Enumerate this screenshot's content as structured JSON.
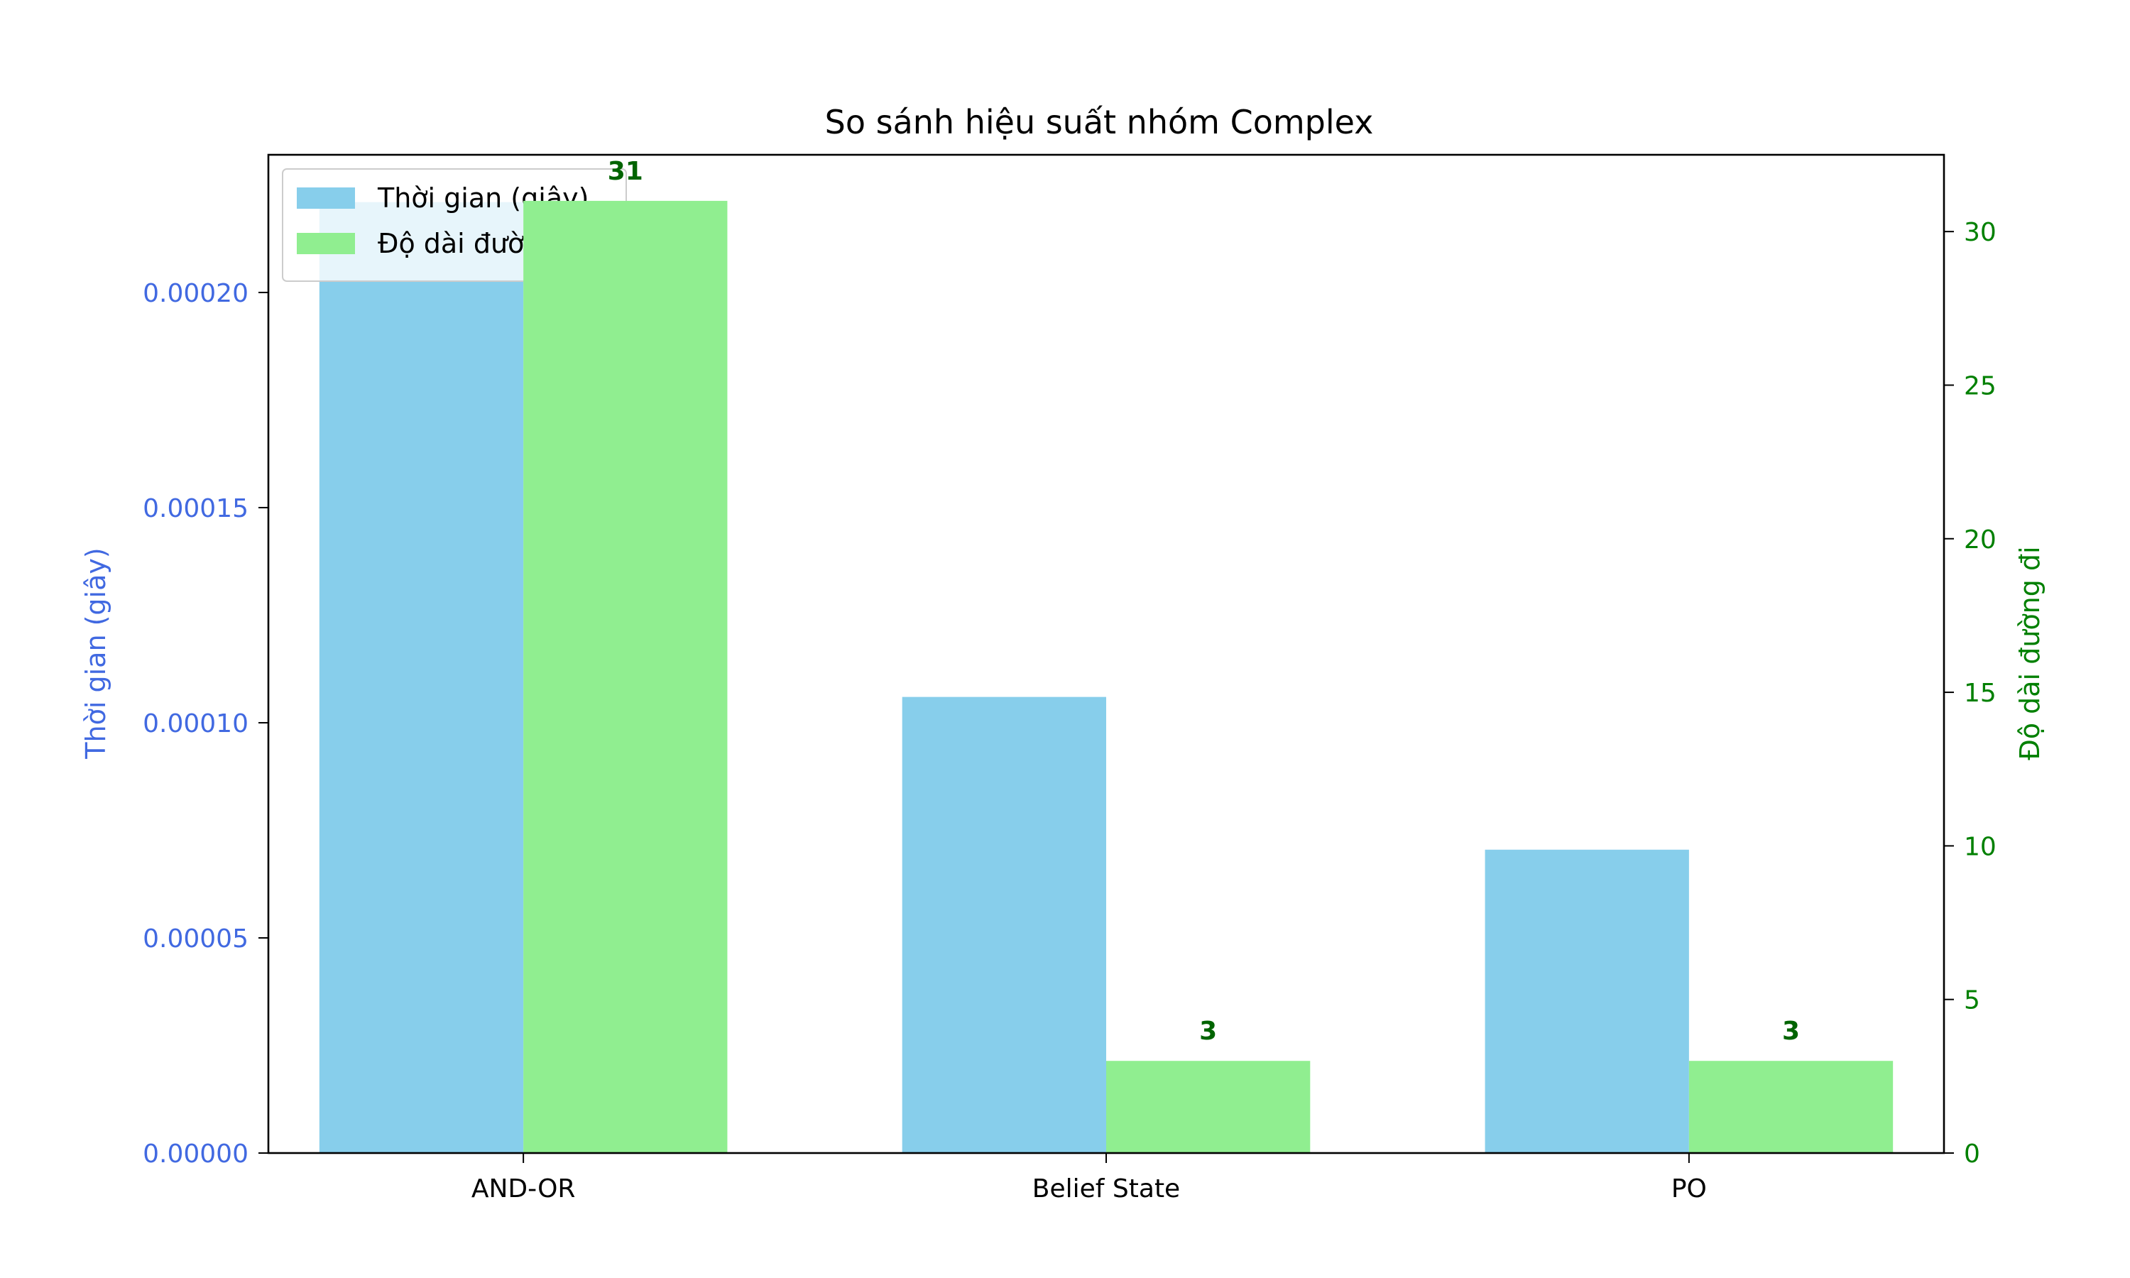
{
  "chart_data": {
    "type": "bar",
    "title": "So sánh hiệu suất nhóm Complex",
    "categories": [
      "AND-OR",
      "Belief State",
      "PO"
    ],
    "series": [
      {
        "name": "Thời gian (giây)",
        "axis": "left",
        "color": "#87ceeb",
        "values": [
          0.000221,
          0.000106,
          7.05e-05
        ]
      },
      {
        "name": "Độ dài đường đi",
        "axis": "right",
        "color": "#90ee90",
        "values": [
          31,
          3,
          3
        ],
        "labels": [
          "31",
          "3",
          "3"
        ]
      }
    ],
    "ylabel_left": "Thời gian (giây)",
    "ylabel_right": "Độ dài đường đi",
    "ylim_left": [
      0,
      0.000232
    ],
    "ylim_right": [
      0,
      32.5
    ],
    "yticks_left": [
      "0.00000",
      "0.00005",
      "0.00010",
      "0.00015",
      "0.00020"
    ],
    "yticks_left_values": [
      0,
      5e-05,
      0.0001,
      0.00015,
      0.0002
    ],
    "yticks_right": [
      "0",
      "5",
      "10",
      "15",
      "20",
      "25",
      "30"
    ],
    "yticks_right_values": [
      0,
      5,
      10,
      15,
      20,
      25,
      30
    ],
    "left_axis_color": "#4169e1",
    "right_axis_color": "#008000",
    "label_color": "#006400",
    "legend": {
      "position": "upper-left",
      "entries": [
        "Thời gian (giây)",
        "Độ dài đường đi"
      ]
    },
    "grid": false
  }
}
